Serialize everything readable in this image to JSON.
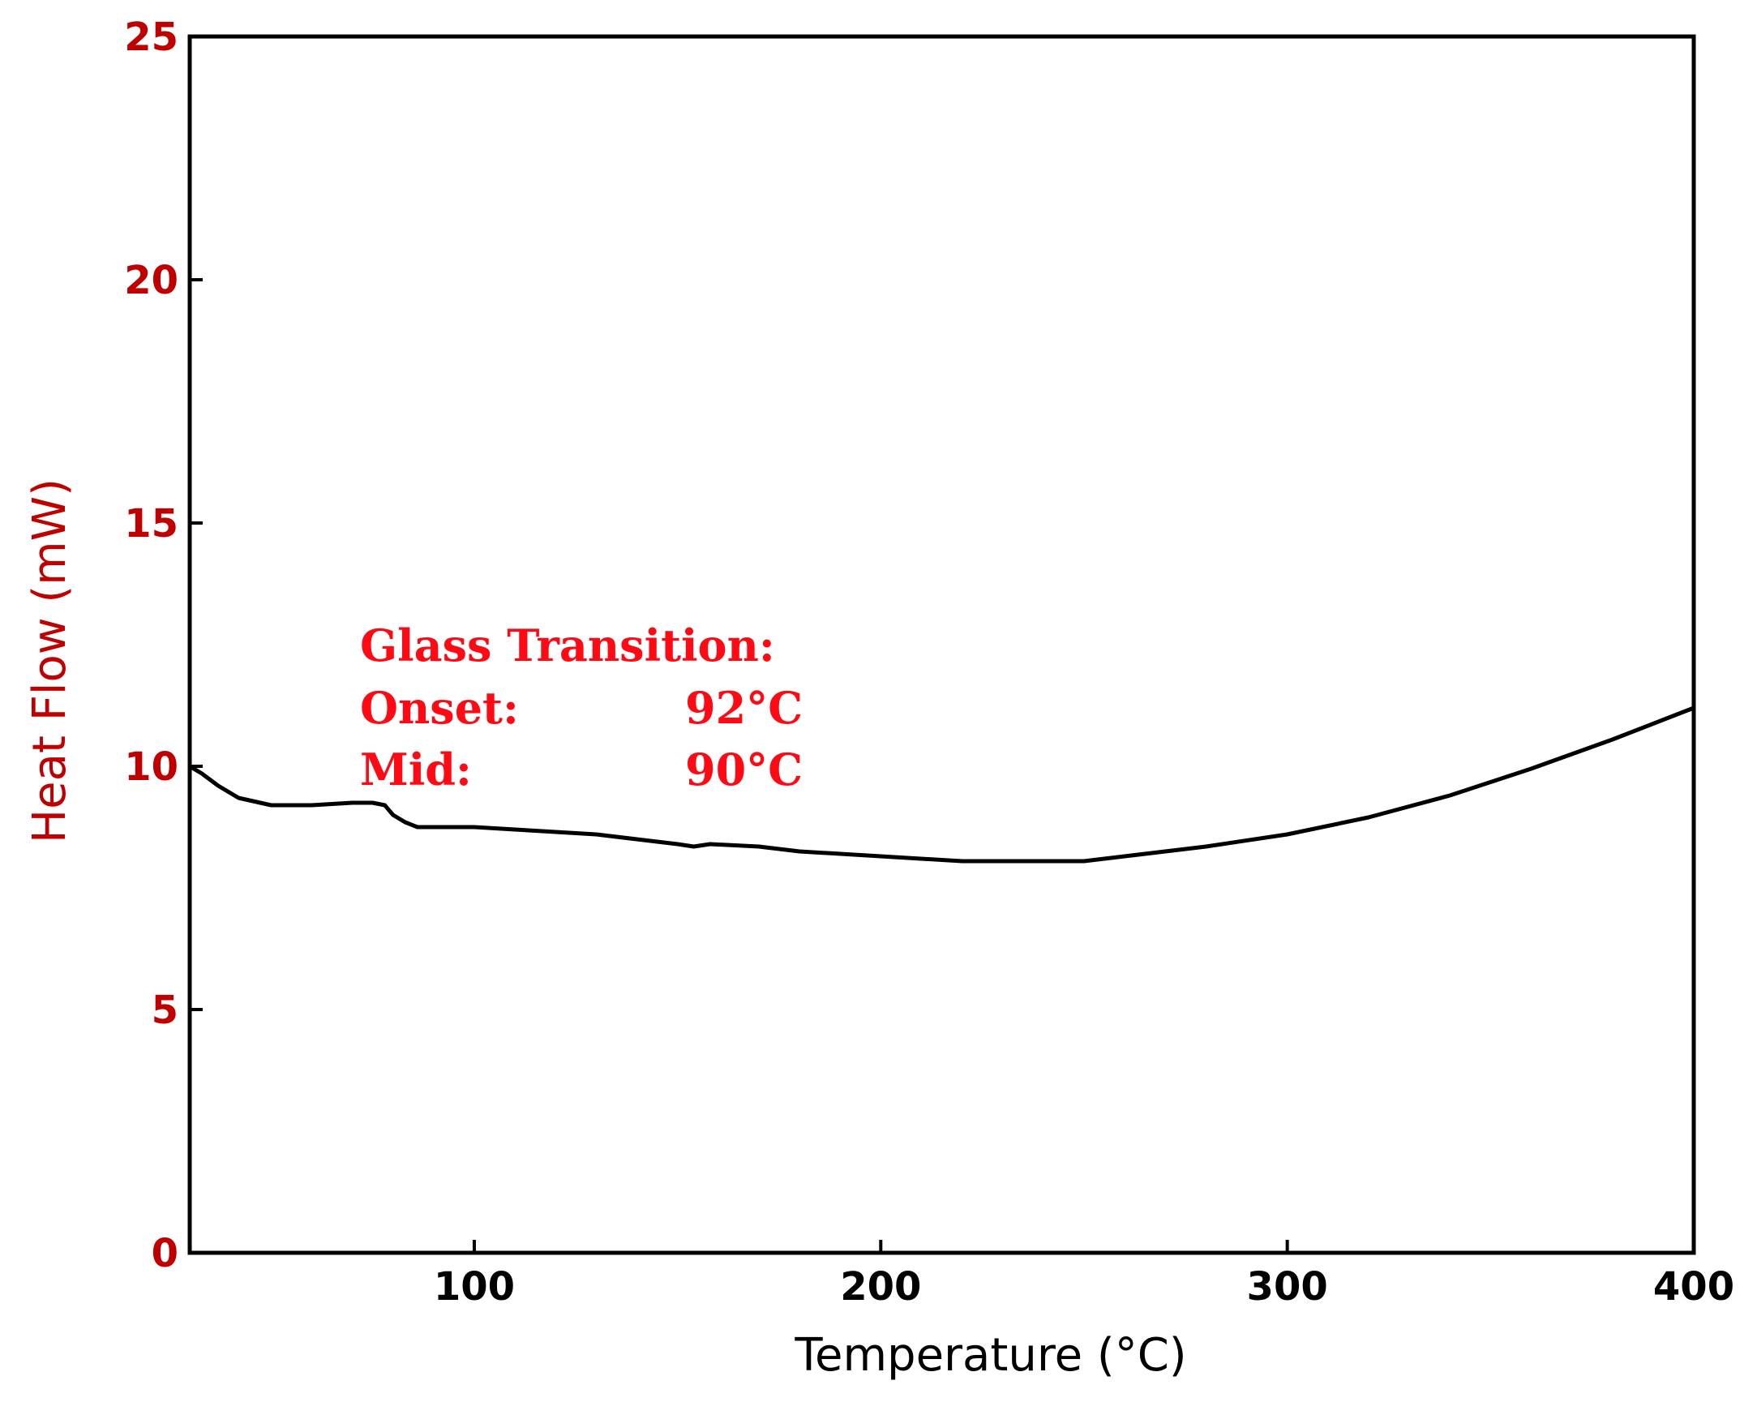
{
  "chart_data": {
    "type": "line",
    "title": "",
    "xlabel": "Temperature (°C)",
    "ylabel": "Heat Flow (mW)",
    "xlim": [
      30,
      400
    ],
    "ylim": [
      0,
      25
    ],
    "x_ticks": [
      100,
      200,
      300,
      400
    ],
    "y_ticks": [
      0,
      5,
      10,
      15,
      20,
      25
    ],
    "grid": false,
    "colors": {
      "axis_ticks_y": "#c00000",
      "ylabel": "#c00000",
      "annotation": "#ff0a14",
      "line": "#000000"
    },
    "series": [
      {
        "x": [
          30,
          33,
          37,
          42,
          50,
          60,
          70,
          75,
          78,
          80,
          83,
          86,
          90,
          100,
          110,
          120,
          130,
          140,
          150,
          154,
          158,
          170,
          180,
          200,
          220,
          240,
          250,
          260,
          280,
          300,
          320,
          340,
          360,
          380,
          400
        ],
        "y": [
          10.0,
          9.85,
          9.6,
          9.35,
          9.2,
          9.2,
          9.25,
          9.25,
          9.2,
          9.0,
          8.85,
          8.75,
          8.75,
          8.75,
          8.7,
          8.65,
          8.6,
          8.5,
          8.4,
          8.35,
          8.4,
          8.35,
          8.25,
          8.15,
          8.05,
          8.05,
          8.05,
          8.15,
          8.35,
          8.6,
          8.95,
          9.4,
          9.95,
          10.55,
          11.2
        ]
      }
    ],
    "annotations": {
      "heading": "Glass Transition:",
      "onset_label": "Onset:",
      "onset_value": "92°C",
      "mid_label": "Mid:",
      "mid_value": "90°C"
    }
  }
}
